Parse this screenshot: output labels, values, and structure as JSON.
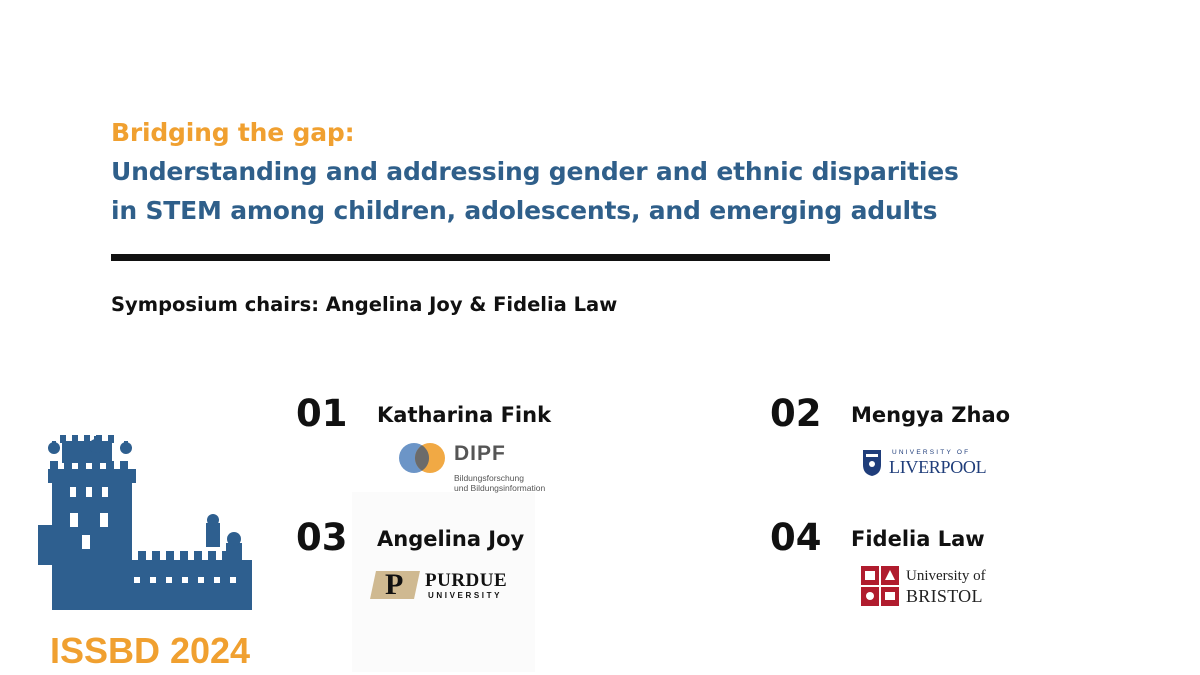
{
  "title": {
    "line1": "Bridging the gap:",
    "line2": "Understanding and addressing gender and ethnic disparities",
    "line3": "in STEM among children, adolescents, and emerging adults"
  },
  "chairs": "Symposium chairs: Angelina Joy & Fidelia Law",
  "speakers": [
    {
      "number": "01",
      "name": "Katharina Fink",
      "logo": {
        "name": "DIPF",
        "sub1": "Bildungsforschung",
        "sub2": "und Bildungsinformation"
      }
    },
    {
      "number": "02",
      "name": "Mengya Zhao",
      "logo": {
        "top": "UNIVERSITY OF",
        "name": "LIVERPOOL"
      }
    },
    {
      "number": "03",
      "name": "Angelina Joy",
      "logo": {
        "mark": "P",
        "name": "PURDUE",
        "sub": "UNIVERSITY"
      }
    },
    {
      "number": "04",
      "name": "Fidelia Law",
      "logo": {
        "line1": "University of",
        "line2": "BRISTOL"
      }
    }
  ],
  "conference": {
    "label": "ISSBD 2024"
  },
  "colors": {
    "orange": "#f0a030",
    "blue": "#2f5f8a",
    "castle": "#2e5f8f",
    "text": "#111111"
  }
}
